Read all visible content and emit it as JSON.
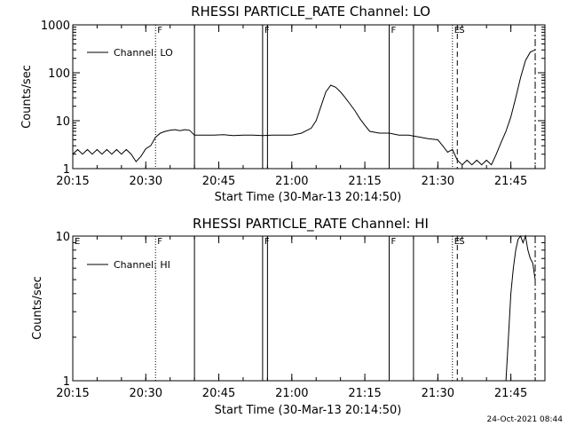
{
  "footer_timestamp": "24-Oct-2021 08:44",
  "chart_data": [
    {
      "type": "line",
      "title": "RHESSI PARTICLE_RATE Channel: LO",
      "xlabel": "Start Time (30-Mar-13 20:14:50)",
      "ylabel": "Counts/sec",
      "yscale": "log",
      "ylim": [
        1,
        1000
      ],
      "xlim": [
        "20:15",
        "21:52"
      ],
      "xticks": [
        "20:15",
        "20:30",
        "20:45",
        "21:00",
        "21:15",
        "21:30",
        "21:45"
      ],
      "yticks": [
        "1",
        "10",
        "100",
        "1000"
      ],
      "legend": {
        "label": "Channel: LO",
        "position": "top-left"
      },
      "event_lines": [
        {
          "time": "20:32",
          "style": "dotted",
          "label": "F"
        },
        {
          "time": "20:40",
          "style": "solid",
          "label": ""
        },
        {
          "time": "20:54",
          "style": "solid",
          "label": "F"
        },
        {
          "time": "20:55",
          "style": "solid",
          "label": ""
        },
        {
          "time": "21:20",
          "style": "solid",
          "label": "F"
        },
        {
          "time": "21:25",
          "style": "solid",
          "label": ""
        },
        {
          "time": "21:33",
          "style": "dotted",
          "label": "E"
        },
        {
          "time": "21:34",
          "style": "dashed",
          "label": "S"
        },
        {
          "time": "21:50",
          "style": "dashdot",
          "label": ""
        }
      ],
      "series": [
        {
          "name": "Channel: LO",
          "points": [
            [
              "20:15",
              2
            ],
            [
              "20:16",
              2.5
            ],
            [
              "20:17",
              2
            ],
            [
              "20:18",
              2.5
            ],
            [
              "20:19",
              2
            ],
            [
              "20:20",
              2.5
            ],
            [
              "20:21",
              2
            ],
            [
              "20:22",
              2.5
            ],
            [
              "20:23",
              2
            ],
            [
              "20:24",
              2.5
            ],
            [
              "20:25",
              2
            ],
            [
              "20:26",
              2.5
            ],
            [
              "20:27",
              2
            ],
            [
              "20:28",
              1.4
            ],
            [
              "20:29",
              1.8
            ],
            [
              "20:30",
              2.6
            ],
            [
              "20:31",
              3
            ],
            [
              "20:32",
              4.5
            ],
            [
              "20:33",
              5.5
            ],
            [
              "20:34",
              6
            ],
            [
              "20:35",
              6.3
            ],
            [
              "20:36",
              6.5
            ],
            [
              "20:37",
              6.2
            ],
            [
              "20:38",
              6.5
            ],
            [
              "20:39",
              6.3
            ],
            [
              "20:40",
              5
            ],
            [
              "20:42",
              5
            ],
            [
              "20:44",
              5
            ],
            [
              "20:46",
              5.1
            ],
            [
              "20:48",
              4.9
            ],
            [
              "20:50",
              5
            ],
            [
              "20:52",
              5
            ],
            [
              "20:54",
              4.9
            ],
            [
              "20:56",
              5
            ],
            [
              "20:58",
              5
            ],
            [
              "21:00",
              5
            ],
            [
              "21:02",
              5.5
            ],
            [
              "21:04",
              7
            ],
            [
              "21:05",
              10
            ],
            [
              "21:06",
              20
            ],
            [
              "21:07",
              40
            ],
            [
              "21:08",
              55
            ],
            [
              "21:09",
              50
            ],
            [
              "21:10",
              40
            ],
            [
              "21:11",
              30
            ],
            [
              "21:12",
              22
            ],
            [
              "21:13",
              16
            ],
            [
              "21:14",
              11
            ],
            [
              "21:15",
              8
            ],
            [
              "21:16",
              6
            ],
            [
              "21:18",
              5.5
            ],
            [
              "21:20",
              5.5
            ],
            [
              "21:22",
              5
            ],
            [
              "21:24",
              5
            ],
            [
              "21:26",
              4.6
            ],
            [
              "21:28",
              4.2
            ],
            [
              "21:30",
              4
            ],
            [
              "21:31",
              3
            ],
            [
              "21:32",
              2.2
            ],
            [
              "21:33",
              2.5
            ],
            [
              "21:34",
              1.5
            ],
            [
              "21:35",
              1.2
            ],
            [
              "21:36",
              1.5
            ],
            [
              "21:37",
              1.2
            ],
            [
              "21:38",
              1.5
            ],
            [
              "21:39",
              1.2
            ],
            [
              "21:40",
              1.5
            ],
            [
              "21:41",
              1.2
            ],
            [
              "21:42",
              2
            ],
            [
              "21:43",
              3.5
            ],
            [
              "21:44",
              6
            ],
            [
              "21:45",
              12
            ],
            [
              "21:46",
              30
            ],
            [
              "21:47",
              80
            ],
            [
              "21:48",
              180
            ],
            [
              "21:49",
              270
            ],
            [
              "21:50",
              300
            ]
          ]
        }
      ]
    },
    {
      "type": "line",
      "title": "RHESSI PARTICLE_RATE Channel: HI",
      "xlabel": "Start Time (30-Mar-13 20:14:50)",
      "ylabel": "Counts/sec",
      "yscale": "log",
      "ylim": [
        1,
        10
      ],
      "xlim": [
        "20:15",
        "21:52"
      ],
      "xticks": [
        "20:15",
        "20:30",
        "20:45",
        "21:00",
        "21:15",
        "21:30",
        "21:45"
      ],
      "yticks": [
        "1",
        "10"
      ],
      "legend": {
        "label": "Channel: HI",
        "position": "top-left"
      },
      "event_lines": [
        {
          "time": "20:15",
          "style": "none",
          "label": "E"
        },
        {
          "time": "20:32",
          "style": "dotted",
          "label": "F"
        },
        {
          "time": "20:40",
          "style": "solid",
          "label": ""
        },
        {
          "time": "20:54",
          "style": "solid",
          "label": "F"
        },
        {
          "time": "20:55",
          "style": "solid",
          "label": ""
        },
        {
          "time": "21:20",
          "style": "solid",
          "label": "F"
        },
        {
          "time": "21:25",
          "style": "solid",
          "label": ""
        },
        {
          "time": "21:33",
          "style": "dotted",
          "label": "E"
        },
        {
          "time": "21:34",
          "style": "dashed",
          "label": "S"
        },
        {
          "time": "21:50",
          "style": "dashdot",
          "label": ""
        }
      ],
      "series": [
        {
          "name": "Channel: HI",
          "points": [
            [
              "21:44",
              1
            ],
            [
              "21:44.5",
              2
            ],
            [
              "21:45",
              4
            ],
            [
              "21:45.5",
              6
            ],
            [
              "21:46",
              8
            ],
            [
              "21:46.5",
              9.5
            ],
            [
              "21:47",
              10
            ],
            [
              "21:47.5",
              9
            ],
            [
              "21:48",
              10
            ],
            [
              "21:48.5",
              8
            ],
            [
              "21:49",
              7
            ],
            [
              "21:49.5",
              6.5
            ],
            [
              "21:50",
              5
            ]
          ]
        }
      ]
    }
  ]
}
